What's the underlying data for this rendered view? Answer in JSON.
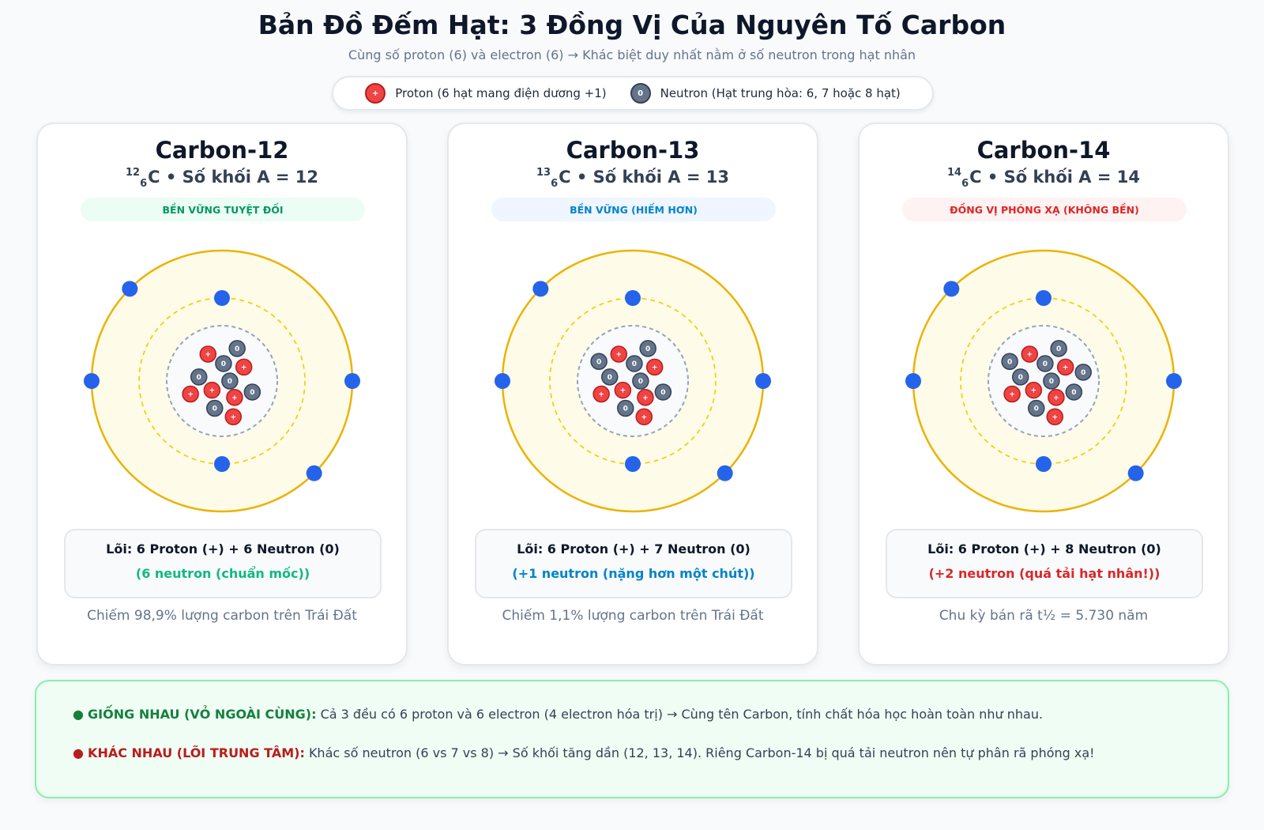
{
  "header": {
    "title": "Bản Đồ Đếm Hạt: 3 Đồng Vị Của Nguyên Tố Carbon",
    "subtitle": "Cùng số proton (6) và electron (6) → Khác biệt duy nhất nằm ở số neutron trong hạt nhân"
  },
  "legend": [
    {
      "symbol": "+",
      "label": "Proton (6 hạt mang điện dương +1)"
    },
    {
      "symbol": "0",
      "label": "Neutron (Hạt trung hòa: 6, 7 hoặc 8 hạt)"
    }
  ],
  "cards": [
    {
      "name": "Carbon-12",
      "mass": "12",
      "atomic": "6",
      "label": "C • Số khối A = 12",
      "badge": "BỀN VỮNG TUYỆT ĐỐI",
      "core": "Lõi: 6 Proton (+) + 6 Neutron (0)",
      "note": "(6 neutron (chuẩn mốc))",
      "footer": "Chiếm 98,9% lượng carbon trên Trái Đất",
      "protons": 6,
      "neutrons": 6,
      "shells": [
        2,
        4
      ]
    },
    {
      "name": "Carbon-13",
      "mass": "13",
      "atomic": "6",
      "label": "C • Số khối A = 13",
      "badge": "BỀN VỮNG (HIẾM HƠN)",
      "core": "Lõi: 6 Proton (+) + 7 Neutron (0)",
      "note": "(+1 neutron (nặng hơn một chút))",
      "footer": "Chiếm 1,1% lượng carbon trên Trái Đất",
      "protons": 6,
      "neutrons": 7,
      "shells": [
        2,
        4
      ]
    },
    {
      "name": "Carbon-14",
      "mass": "14",
      "atomic": "6",
      "label": "C • Số khối A = 14",
      "badge": "ĐỒNG VỊ PHÓNG XẠ (KHÔNG BỀN)",
      "core": "Lõi: 6 Proton (+) + 8 Neutron (0)",
      "note": "(+2 neutron (quá tải hạt nhân!))",
      "footer": "Chu kỳ bán rã t½ = 5.730 năm",
      "protons": 6,
      "neutrons": 8,
      "shells": [
        2,
        4
      ]
    }
  ],
  "summary": [
    {
      "heading": "GIỐNG NHAU (VỎ NGOÀI CÙNG):",
      "text": "Cả 3 đều có 6 proton và 6 electron (4 electron hóa trị) → Cùng tên Carbon, tính chất hóa học hoàn toàn như nhau."
    },
    {
      "heading": "KHÁC NHAU (LÕI TRUNG TÂM):",
      "text": "Khác số neutron (6 vs 7 vs 8) → Số khối tăng dần (12, 13, 14). Riêng Carbon-14 bị quá tải neutron nên tự phân rã phóng xạ!"
    }
  ]
}
